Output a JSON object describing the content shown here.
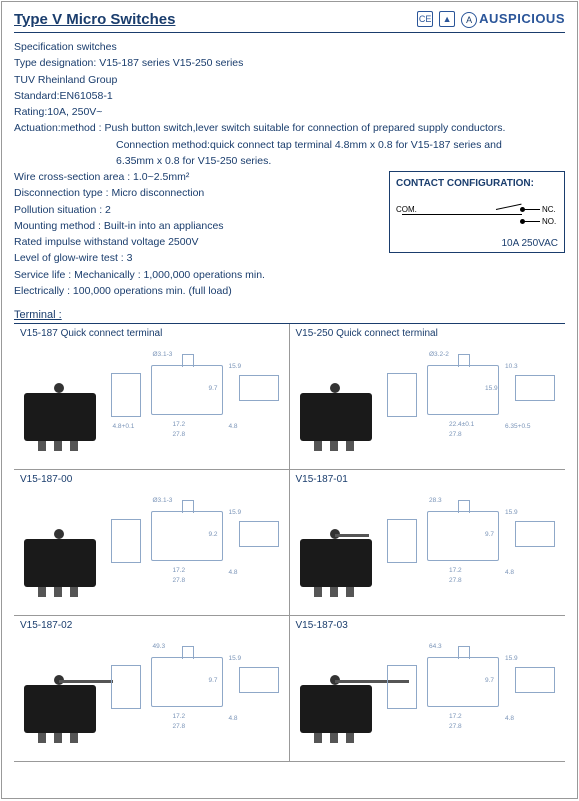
{
  "header": {
    "title": "Type V Micro Switches",
    "cert1": "CE",
    "cert2": "▲",
    "brand": "AUSPICIOUS"
  },
  "spec": {
    "subtitle": "Specification switches",
    "lines": [
      "Type designation: V15-187 series V15-250 series",
      "TUV Rheinland Group",
      "Standard:EN61058-1",
      "Rating:10A, 250V~",
      "Actuation:method : Push button switch,lever switch suitable for connection of prepared supply conductors."
    ],
    "indent1": "Connection method:quick connect tap terminal 4.8mm x 0.8 for V15-187 series and",
    "indent2": "6.35mm x 0.8 for V15-250 series.",
    "lines2": [
      "Wire cross-section area : 1.0~2.5mm²",
      "Disconnection type : Micro disconnection",
      "Pollution situation : 2",
      "Mounting method : Built-in into an appliances",
      "Rated impulse withstand voltage 2500V",
      "Level of glow-wire test : 3",
      "Service life : Mechanically : 1,000,000 operations min.",
      "Electrically : 100,000 operations min. (full load)"
    ]
  },
  "contact": {
    "title": "CONTACT CONFIGURATION:",
    "com": "COM.",
    "nc": "NC.",
    "no": "NO.",
    "rating": "10A 250VAC"
  },
  "terminal_label": "Terminal :",
  "cells": [
    {
      "title": "V15-187 Quick connect terminal",
      "lever_w": 0,
      "dims": [
        "Ø3.1-3",
        "17.2",
        "27.8",
        "9.7",
        "15.9",
        "4.8",
        "4.8+0.1"
      ]
    },
    {
      "title": "V15-250 Quick connect terminal",
      "lever_w": 0,
      "dims": [
        "Ø3.2-2",
        "22.4±0.1",
        "27.8",
        "15.9",
        "10.3",
        "6.35+0.5"
      ]
    },
    {
      "title": "V15-187-00",
      "lever_w": 0,
      "dims": [
        "Ø3.1-3",
        "17.2",
        "27.8",
        "9.2",
        "15.9",
        "4.8"
      ]
    },
    {
      "title": "V15-187-01",
      "lever_w": 34,
      "dims": [
        "28.3",
        "17.2",
        "27.8",
        "9.7",
        "15.9",
        "4.8"
      ]
    },
    {
      "title": "V15-187-02",
      "lever_w": 54,
      "dims": [
        "49.3",
        "17.2",
        "27.8",
        "9.7",
        "15.9",
        "4.8"
      ]
    },
    {
      "title": "V15-187-03",
      "lever_w": 74,
      "dims": [
        "64.3",
        "17.2",
        "27.8",
        "9.7",
        "15.9",
        "4.8"
      ]
    }
  ],
  "colors": {
    "text": "#1a3d6d",
    "drawing": "#8fa8c8",
    "photo": "#1a1a1a"
  }
}
